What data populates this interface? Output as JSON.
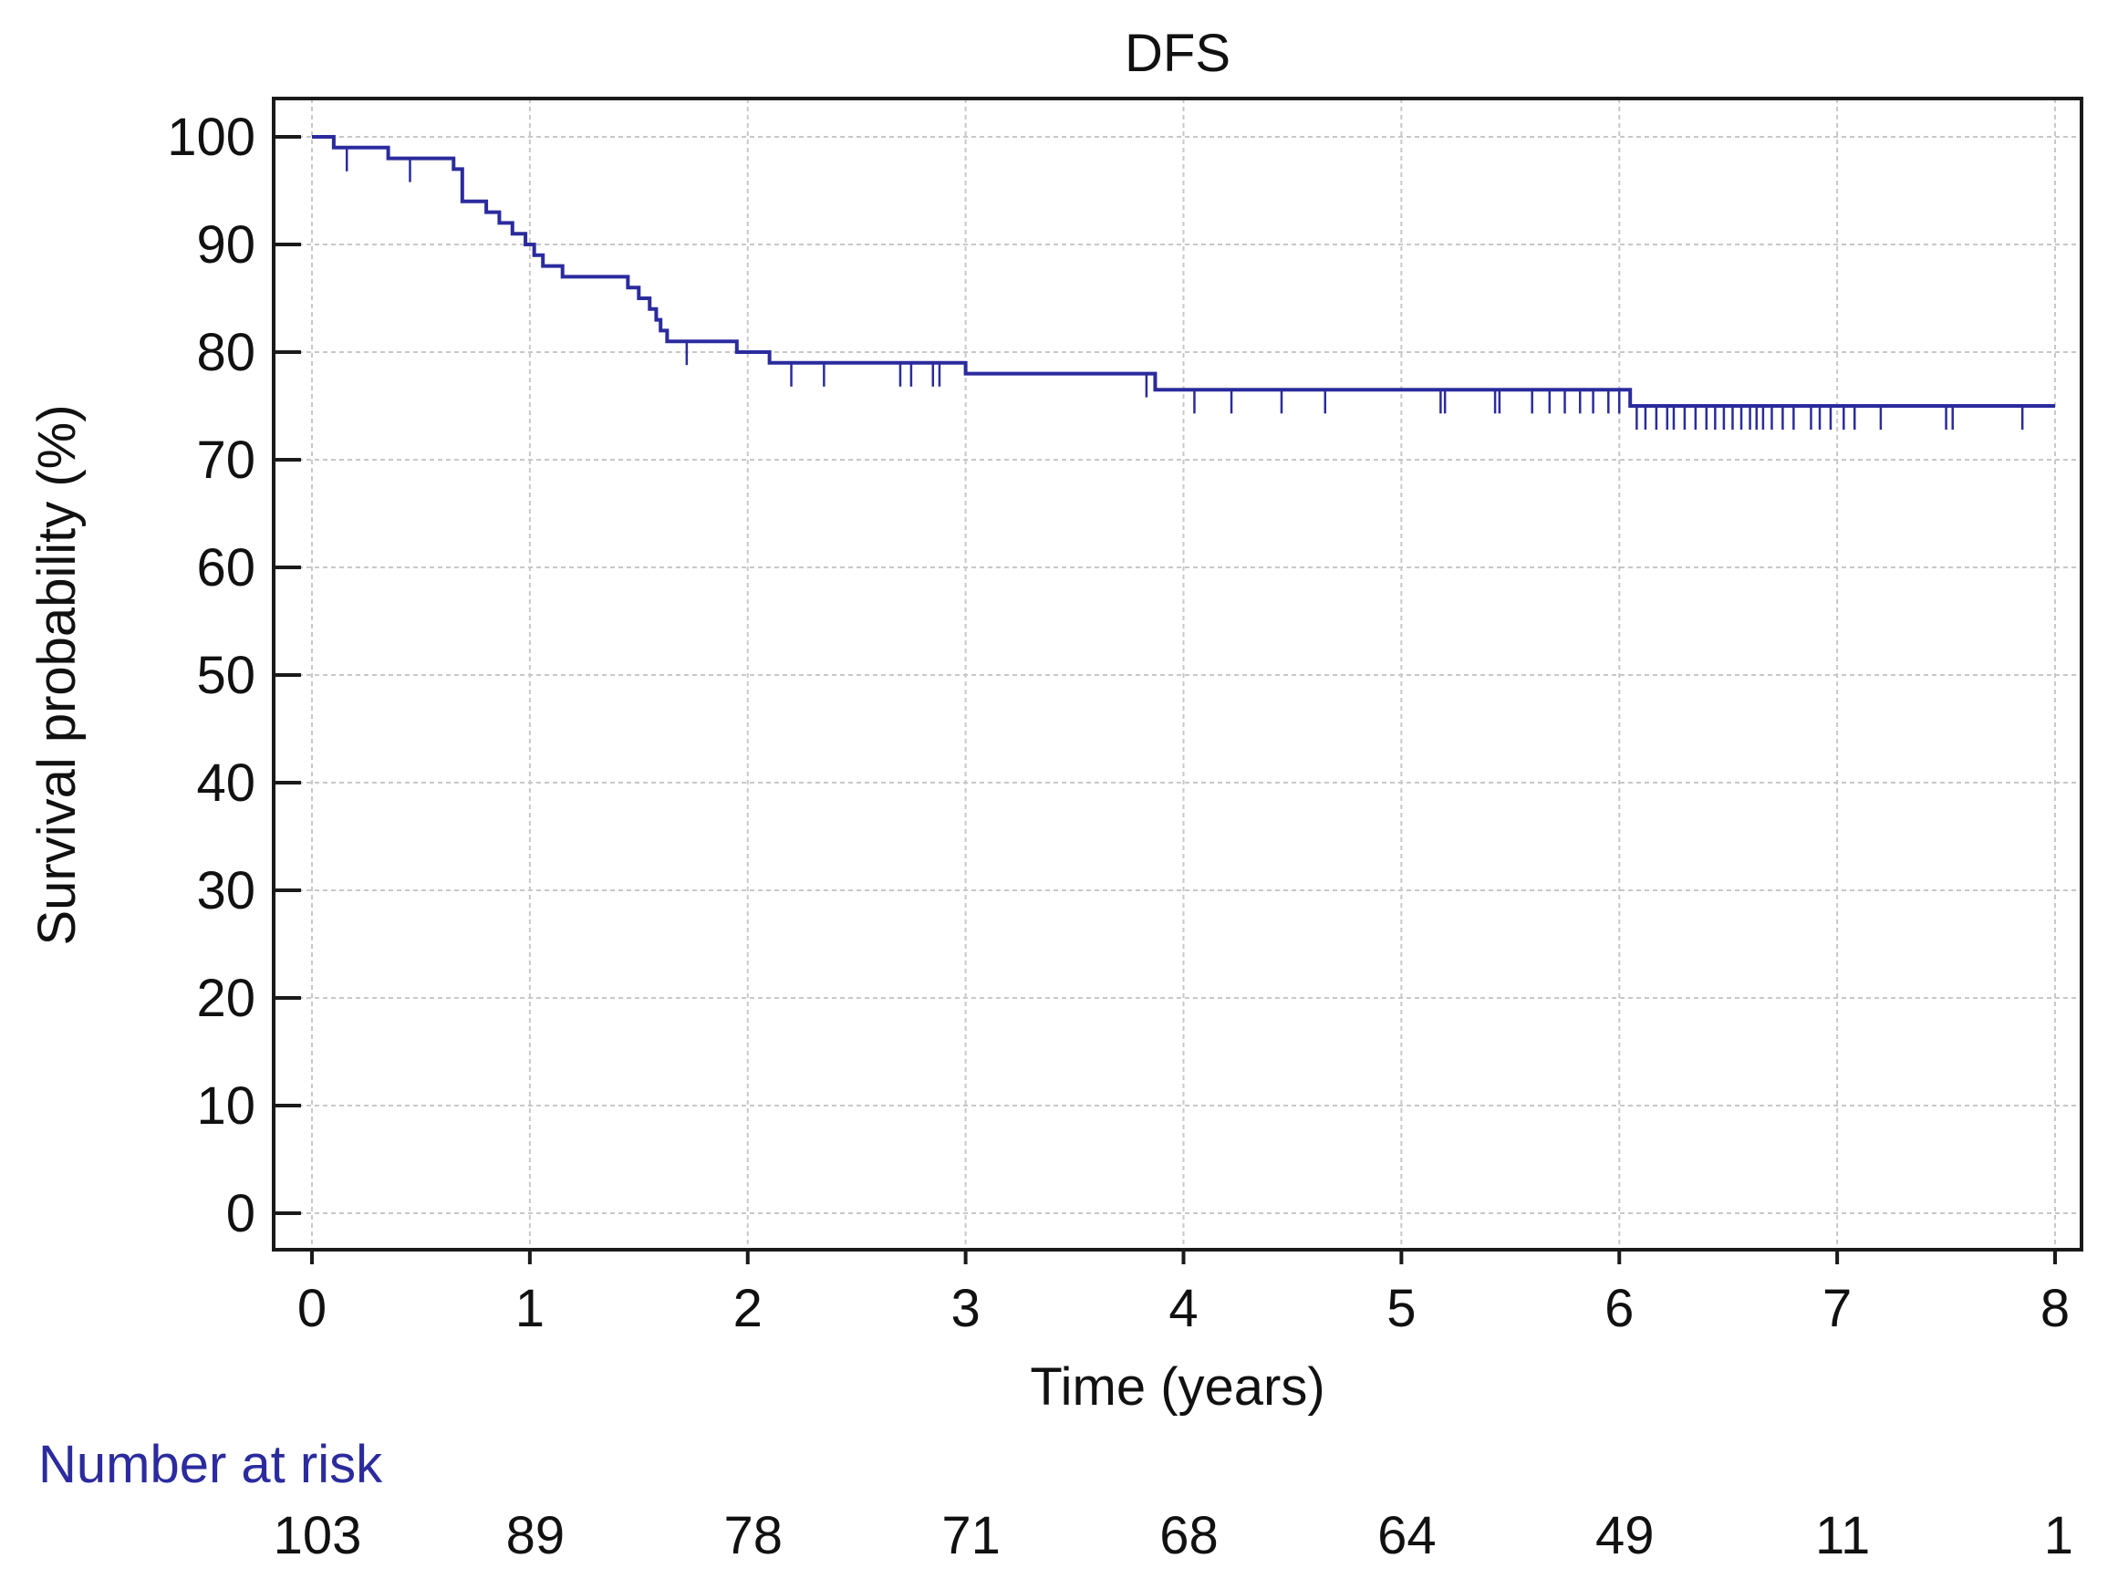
{
  "chart_data": {
    "type": "line",
    "subtype": "kaplan-meier",
    "title": "DFS",
    "xlabel": "Time (years)",
    "ylabel": "Survival probability (%)",
    "xlim": [
      0,
      8
    ],
    "ylim": [
      0,
      100
    ],
    "x_ticks": [
      "0",
      "1",
      "2",
      "3",
      "4",
      "5",
      "6",
      "7",
      "8"
    ],
    "y_ticks": [
      "0",
      "10",
      "20",
      "30",
      "40",
      "50",
      "60",
      "70",
      "80",
      "90",
      "100"
    ],
    "grid": true,
    "line_color": "#2b2b9e",
    "series": [
      {
        "name": "DFS",
        "steps": [
          [
            0,
            100
          ],
          [
            0.1,
            99
          ],
          [
            0.35,
            98
          ],
          [
            0.65,
            97
          ],
          [
            0.69,
            94
          ],
          [
            0.8,
            93
          ],
          [
            0.86,
            92
          ],
          [
            0.92,
            91
          ],
          [
            0.98,
            90
          ],
          [
            1.02,
            89
          ],
          [
            1.06,
            88
          ],
          [
            1.15,
            87
          ],
          [
            1.45,
            86
          ],
          [
            1.5,
            85
          ],
          [
            1.55,
            84
          ],
          [
            1.58,
            83
          ],
          [
            1.6,
            82
          ],
          [
            1.63,
            81
          ],
          [
            1.95,
            80
          ],
          [
            2.1,
            79
          ],
          [
            3.0,
            78
          ],
          [
            3.87,
            76.5
          ],
          [
            6.05,
            75
          ],
          [
            8.0,
            75
          ]
        ],
        "censored": [
          0.16,
          0.45,
          1.72,
          2.2,
          2.35,
          2.7,
          2.75,
          2.85,
          2.88,
          3.83,
          4.05,
          4.22,
          4.45,
          4.65,
          5.18,
          5.2,
          5.43,
          5.45,
          5.6,
          5.68,
          5.75,
          5.82,
          5.88,
          5.95,
          6.0,
          6.08,
          6.12,
          6.17,
          6.22,
          6.25,
          6.3,
          6.35,
          6.4,
          6.44,
          6.48,
          6.52,
          6.56,
          6.6,
          6.63,
          6.66,
          6.7,
          6.75,
          6.8,
          6.88,
          6.92,
          6.97,
          7.03,
          7.08,
          7.2,
          7.5,
          7.53,
          7.85
        ]
      }
    ],
    "risk_table": {
      "label": "Number at risk",
      "times": [
        0,
        1,
        2,
        3,
        4,
        5,
        6,
        7,
        8
      ],
      "values": [
        "103",
        "89",
        "78",
        "71",
        "68",
        "64",
        "49",
        "11",
        "1"
      ]
    }
  }
}
